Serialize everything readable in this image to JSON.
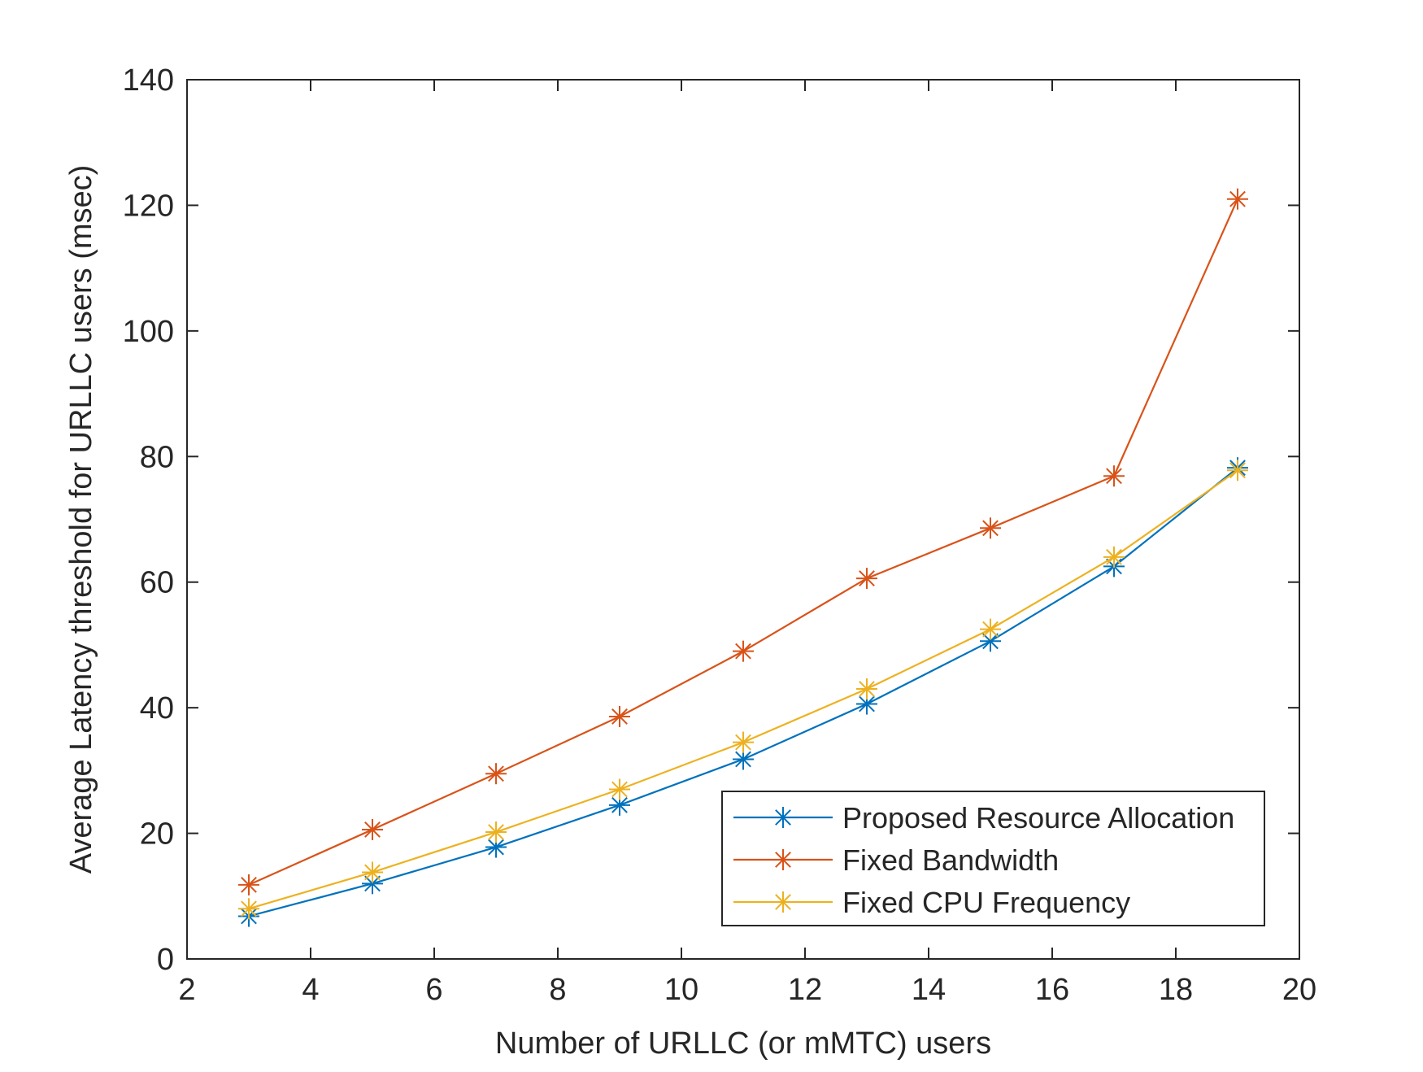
{
  "chart_data": {
    "type": "line",
    "title": "",
    "xlabel": "Number of URLLC (or mMTC) users",
    "ylabel": "Average Latency threshold for URLLC users (msec)",
    "xlim": [
      2,
      20
    ],
    "ylim": [
      0,
      140
    ],
    "xticks": [
      2,
      4,
      6,
      8,
      10,
      12,
      14,
      16,
      18,
      20
    ],
    "yticks": [
      0,
      20,
      40,
      60,
      80,
      100,
      120,
      140
    ],
    "grid": false,
    "legend_position": "bottom-right",
    "x": [
      3,
      5,
      7,
      9,
      11,
      13,
      15,
      17,
      19
    ],
    "series": [
      {
        "name": "Proposed Resource Allocation",
        "color": "#0072BD",
        "marker": "asterisk",
        "values": [
          6.8,
          12.0,
          17.8,
          24.5,
          31.8,
          40.6,
          50.6,
          62.5,
          78.2
        ]
      },
      {
        "name": "Fixed Bandwidth",
        "color": "#D95319",
        "marker": "asterisk",
        "values": [
          11.8,
          20.6,
          29.5,
          38.6,
          49.0,
          60.6,
          68.6,
          76.9,
          121.0
        ]
      },
      {
        "name": "Fixed CPU Frequency",
        "color": "#EDB120",
        "marker": "asterisk",
        "values": [
          8.0,
          13.8,
          20.2,
          27.0,
          34.5,
          43.0,
          52.5,
          64.0,
          77.8
        ]
      }
    ]
  }
}
